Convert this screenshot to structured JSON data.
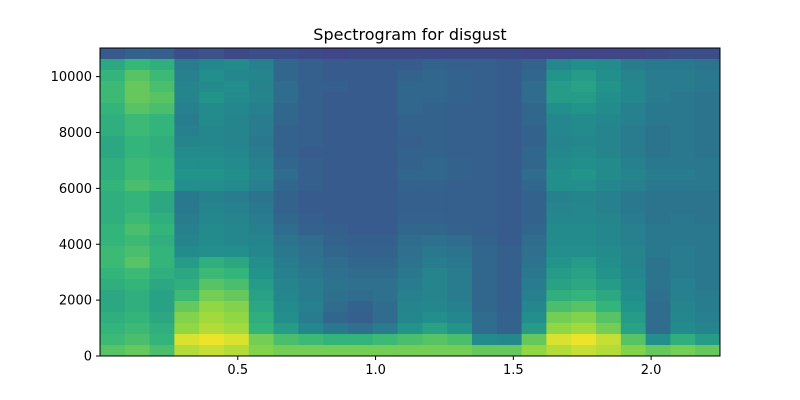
{
  "chart_data": {
    "type": "heatmap",
    "title": "Spectrogram for disgust",
    "xlabel": "",
    "ylabel": "",
    "xlim": [
      0.0,
      2.25
    ],
    "ylim": [
      0,
      11025
    ],
    "x_ticks": [
      0.5,
      1.0,
      1.5,
      2.0
    ],
    "x_tick_labels": [
      "0.5",
      "1.0",
      "1.5",
      "2.0"
    ],
    "y_ticks": [
      0,
      2000,
      4000,
      6000,
      8000,
      10000
    ],
    "y_tick_labels": [
      "0",
      "2000",
      "4000",
      "6000",
      "8000",
      "10000"
    ],
    "colormap": "viridis",
    "grid": false,
    "legend": "none",
    "intensity_rows_high_to_low_freq": [
      [
        0.35,
        0.4,
        0.38,
        0.3,
        0.32,
        0.28,
        0.3,
        0.3,
        0.28,
        0.26,
        0.28,
        0.28,
        0.28,
        0.28,
        0.28,
        0.28,
        0.28,
        0.26,
        0.26,
        0.26,
        0.26,
        0.26,
        0.28,
        0.3,
        0.3
      ],
      [
        0.7,
        0.75,
        0.72,
        0.52,
        0.58,
        0.6,
        0.54,
        0.42,
        0.38,
        0.36,
        0.36,
        0.36,
        0.36,
        0.4,
        0.38,
        0.38,
        0.36,
        0.4,
        0.58,
        0.62,
        0.6,
        0.52,
        0.5,
        0.5,
        0.48
      ],
      [
        0.74,
        0.8,
        0.76,
        0.54,
        0.62,
        0.58,
        0.56,
        0.42,
        0.38,
        0.36,
        0.36,
        0.36,
        0.4,
        0.42,
        0.4,
        0.38,
        0.36,
        0.42,
        0.64,
        0.66,
        0.62,
        0.56,
        0.52,
        0.52,
        0.5
      ],
      [
        0.76,
        0.82,
        0.78,
        0.56,
        0.6,
        0.62,
        0.55,
        0.44,
        0.38,
        0.38,
        0.36,
        0.36,
        0.42,
        0.42,
        0.4,
        0.38,
        0.36,
        0.44,
        0.66,
        0.68,
        0.64,
        0.58,
        0.52,
        0.52,
        0.5
      ],
      [
        0.76,
        0.82,
        0.8,
        0.56,
        0.64,
        0.6,
        0.56,
        0.44,
        0.38,
        0.36,
        0.36,
        0.36,
        0.42,
        0.42,
        0.4,
        0.38,
        0.36,
        0.44,
        0.66,
        0.66,
        0.62,
        0.58,
        0.52,
        0.5,
        0.48
      ],
      [
        0.74,
        0.8,
        0.78,
        0.54,
        0.6,
        0.58,
        0.54,
        0.42,
        0.38,
        0.36,
        0.36,
        0.36,
        0.42,
        0.4,
        0.38,
        0.38,
        0.36,
        0.42,
        0.62,
        0.64,
        0.6,
        0.54,
        0.5,
        0.5,
        0.48
      ],
      [
        0.72,
        0.76,
        0.74,
        0.52,
        0.6,
        0.56,
        0.52,
        0.42,
        0.38,
        0.36,
        0.36,
        0.36,
        0.4,
        0.4,
        0.38,
        0.38,
        0.36,
        0.42,
        0.58,
        0.6,
        0.58,
        0.54,
        0.5,
        0.5,
        0.48
      ],
      [
        0.72,
        0.76,
        0.74,
        0.54,
        0.58,
        0.56,
        0.52,
        0.4,
        0.38,
        0.36,
        0.36,
        0.36,
        0.4,
        0.4,
        0.38,
        0.38,
        0.36,
        0.4,
        0.58,
        0.6,
        0.56,
        0.52,
        0.48,
        0.5,
        0.48
      ],
      [
        0.7,
        0.74,
        0.72,
        0.56,
        0.58,
        0.56,
        0.5,
        0.4,
        0.38,
        0.36,
        0.36,
        0.36,
        0.38,
        0.4,
        0.38,
        0.38,
        0.36,
        0.4,
        0.56,
        0.58,
        0.56,
        0.52,
        0.48,
        0.5,
        0.48
      ],
      [
        0.7,
        0.74,
        0.72,
        0.6,
        0.6,
        0.58,
        0.52,
        0.4,
        0.36,
        0.36,
        0.36,
        0.36,
        0.4,
        0.4,
        0.38,
        0.38,
        0.36,
        0.42,
        0.58,
        0.6,
        0.56,
        0.52,
        0.48,
        0.5,
        0.48
      ],
      [
        0.72,
        0.76,
        0.74,
        0.62,
        0.62,
        0.6,
        0.54,
        0.42,
        0.38,
        0.36,
        0.36,
        0.36,
        0.4,
        0.42,
        0.4,
        0.38,
        0.36,
        0.42,
        0.6,
        0.62,
        0.6,
        0.54,
        0.5,
        0.5,
        0.5
      ],
      [
        0.72,
        0.76,
        0.74,
        0.64,
        0.64,
        0.62,
        0.56,
        0.44,
        0.38,
        0.36,
        0.36,
        0.36,
        0.42,
        0.42,
        0.4,
        0.38,
        0.36,
        0.44,
        0.62,
        0.64,
        0.6,
        0.56,
        0.52,
        0.52,
        0.5
      ],
      [
        0.74,
        0.78,
        0.76,
        0.62,
        0.62,
        0.6,
        0.54,
        0.42,
        0.38,
        0.36,
        0.36,
        0.36,
        0.4,
        0.4,
        0.38,
        0.38,
        0.36,
        0.42,
        0.62,
        0.62,
        0.58,
        0.54,
        0.5,
        0.5,
        0.5
      ],
      [
        0.72,
        0.74,
        0.7,
        0.5,
        0.54,
        0.52,
        0.48,
        0.4,
        0.36,
        0.36,
        0.36,
        0.36,
        0.38,
        0.38,
        0.38,
        0.38,
        0.36,
        0.4,
        0.54,
        0.56,
        0.54,
        0.5,
        0.48,
        0.48,
        0.48
      ],
      [
        0.72,
        0.74,
        0.7,
        0.5,
        0.56,
        0.54,
        0.5,
        0.4,
        0.36,
        0.36,
        0.36,
        0.36,
        0.38,
        0.38,
        0.38,
        0.38,
        0.36,
        0.4,
        0.56,
        0.58,
        0.54,
        0.5,
        0.48,
        0.48,
        0.48
      ],
      [
        0.72,
        0.76,
        0.72,
        0.52,
        0.58,
        0.56,
        0.52,
        0.42,
        0.38,
        0.36,
        0.36,
        0.36,
        0.4,
        0.4,
        0.38,
        0.38,
        0.36,
        0.4,
        0.58,
        0.58,
        0.56,
        0.52,
        0.48,
        0.5,
        0.48
      ],
      [
        0.74,
        0.78,
        0.74,
        0.54,
        0.6,
        0.58,
        0.54,
        0.44,
        0.4,
        0.38,
        0.36,
        0.36,
        0.42,
        0.42,
        0.4,
        0.38,
        0.36,
        0.42,
        0.6,
        0.6,
        0.58,
        0.54,
        0.5,
        0.5,
        0.5
      ],
      [
        0.74,
        0.76,
        0.72,
        0.56,
        0.6,
        0.58,
        0.56,
        0.48,
        0.44,
        0.4,
        0.38,
        0.38,
        0.44,
        0.46,
        0.44,
        0.4,
        0.36,
        0.44,
        0.6,
        0.6,
        0.58,
        0.54,
        0.5,
        0.5,
        0.5
      ],
      [
        0.76,
        0.78,
        0.74,
        0.6,
        0.62,
        0.62,
        0.58,
        0.5,
        0.46,
        0.42,
        0.4,
        0.4,
        0.46,
        0.5,
        0.48,
        0.42,
        0.38,
        0.46,
        0.62,
        0.62,
        0.6,
        0.56,
        0.5,
        0.52,
        0.5
      ],
      [
        0.76,
        0.8,
        0.74,
        0.66,
        0.72,
        0.7,
        0.62,
        0.52,
        0.48,
        0.44,
        0.42,
        0.42,
        0.48,
        0.52,
        0.5,
        0.42,
        0.38,
        0.48,
        0.64,
        0.66,
        0.62,
        0.56,
        0.48,
        0.52,
        0.5
      ],
      [
        0.74,
        0.76,
        0.72,
        0.7,
        0.76,
        0.74,
        0.64,
        0.54,
        0.5,
        0.46,
        0.44,
        0.44,
        0.5,
        0.56,
        0.52,
        0.42,
        0.38,
        0.5,
        0.66,
        0.68,
        0.64,
        0.58,
        0.48,
        0.52,
        0.5
      ],
      [
        0.72,
        0.74,
        0.7,
        0.72,
        0.8,
        0.78,
        0.66,
        0.56,
        0.52,
        0.48,
        0.46,
        0.46,
        0.52,
        0.56,
        0.52,
        0.42,
        0.38,
        0.52,
        0.68,
        0.7,
        0.66,
        0.6,
        0.48,
        0.54,
        0.5
      ],
      [
        0.7,
        0.72,
        0.68,
        0.76,
        0.84,
        0.82,
        0.68,
        0.58,
        0.52,
        0.46,
        0.44,
        0.46,
        0.54,
        0.56,
        0.52,
        0.42,
        0.38,
        0.54,
        0.72,
        0.74,
        0.7,
        0.62,
        0.46,
        0.54,
        0.52
      ],
      [
        0.7,
        0.72,
        0.68,
        0.82,
        0.88,
        0.86,
        0.7,
        0.6,
        0.54,
        0.44,
        0.4,
        0.44,
        0.56,
        0.58,
        0.54,
        0.42,
        0.38,
        0.58,
        0.78,
        0.8,
        0.74,
        0.64,
        0.44,
        0.56,
        0.52
      ],
      [
        0.72,
        0.74,
        0.7,
        0.86,
        0.9,
        0.88,
        0.72,
        0.62,
        0.52,
        0.42,
        0.38,
        0.44,
        0.58,
        0.62,
        0.58,
        0.44,
        0.4,
        0.62,
        0.84,
        0.86,
        0.8,
        0.66,
        0.44,
        0.58,
        0.54
      ],
      [
        0.74,
        0.76,
        0.72,
        0.88,
        0.92,
        0.9,
        0.74,
        0.66,
        0.58,
        0.5,
        0.46,
        0.52,
        0.64,
        0.68,
        0.64,
        0.44,
        0.4,
        0.66,
        0.88,
        0.9,
        0.84,
        0.68,
        0.44,
        0.6,
        0.56
      ],
      [
        0.76,
        0.78,
        0.74,
        0.96,
        0.98,
        0.96,
        0.84,
        0.78,
        0.76,
        0.74,
        0.74,
        0.76,
        0.78,
        0.8,
        0.78,
        0.6,
        0.58,
        0.82,
        0.96,
        0.98,
        0.94,
        0.8,
        0.62,
        0.72,
        0.66
      ],
      [
        0.8,
        0.82,
        0.78,
        0.92,
        0.94,
        0.92,
        0.86,
        0.84,
        0.84,
        0.84,
        0.84,
        0.84,
        0.84,
        0.84,
        0.84,
        0.82,
        0.82,
        0.88,
        0.92,
        0.94,
        0.92,
        0.86,
        0.82,
        0.84,
        0.82
      ]
    ]
  }
}
